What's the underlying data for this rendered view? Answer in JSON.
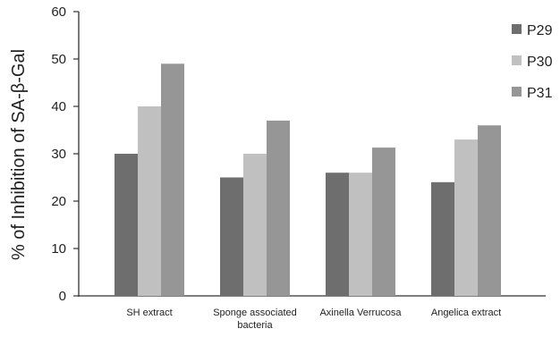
{
  "chart_data": {
    "type": "bar",
    "title": "",
    "xlabel": "",
    "ylabel": "% of Inhibition of SA-β-Gal",
    "ylim": [
      0,
      60
    ],
    "yticks": [
      0,
      10,
      20,
      30,
      40,
      50,
      60
    ],
    "grid": false,
    "legend_position": "top-right",
    "categories": [
      [
        "SH extract"
      ],
      [
        "Sponge associated",
        "bacteria"
      ],
      [
        "Axinella Verrucosa"
      ],
      [
        "Angelica extract"
      ]
    ],
    "series": [
      {
        "name": "P29",
        "color": "#6e6e6e",
        "values": [
          30,
          25,
          26,
          24
        ]
      },
      {
        "name": "P30",
        "color": "#c0c0c0",
        "values": [
          40,
          30,
          26,
          33
        ]
      },
      {
        "name": "P31",
        "color": "#969696",
        "values": [
          49,
          37,
          31.3,
          36
        ]
      }
    ]
  }
}
